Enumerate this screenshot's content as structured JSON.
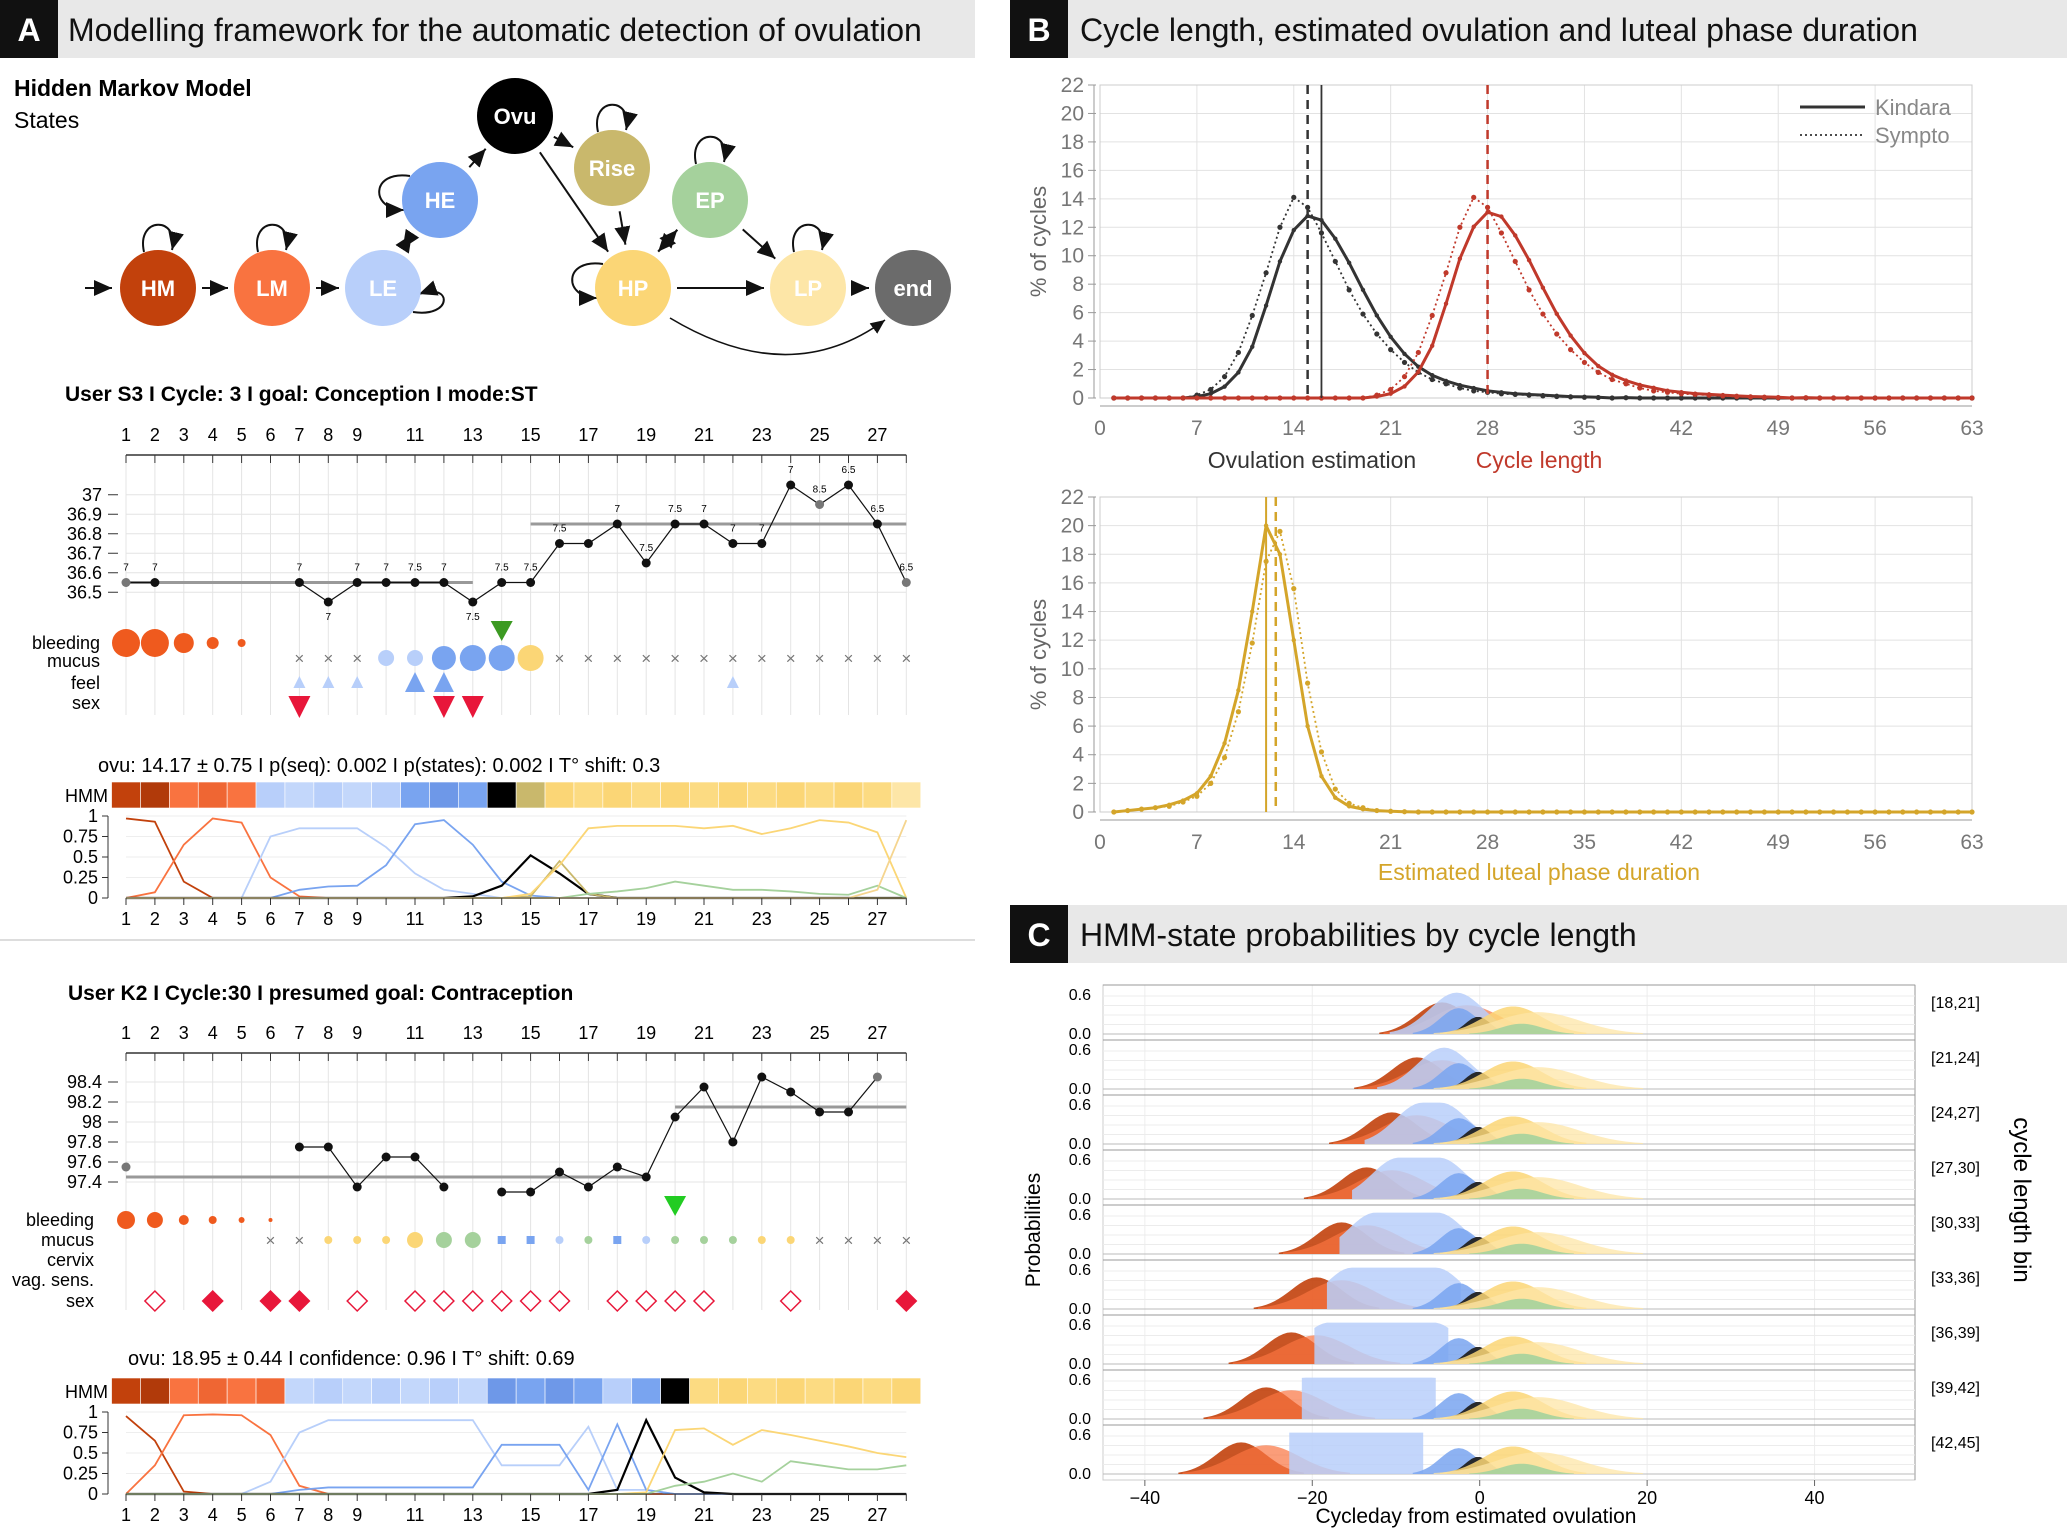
{
  "colors": {
    "HM": "#c2410c",
    "LM": "#f97340",
    "LE": "#b8cffa",
    "HE": "#79a4f0",
    "Ovu": "#000000",
    "Rise": "#c9b86c",
    "HP": "#fbd676",
    "EP": "#a5d19c",
    "LP": "#fde6a7",
    "end": "#6b6b6b",
    "kindara": "#333333",
    "cycle": "#c0392b",
    "luteal": "#d4a52a",
    "bleeding": "#ef5a1e",
    "sex": "#e8173a",
    "arrow_green": "#3c9a22"
  },
  "panelA": {
    "letter": "A",
    "title": "Modelling framework for the automatic detection of ovulation",
    "hmm_title": "Hidden Markov Model",
    "states_label": "States",
    "states": [
      {
        "id": "HM",
        "label": "HM"
      },
      {
        "id": "LM",
        "label": "LM"
      },
      {
        "id": "LE",
        "label": "LE"
      },
      {
        "id": "HE",
        "label": "HE"
      },
      {
        "id": "Ovu",
        "label": "Ovu"
      },
      {
        "id": "Rise",
        "label": "Rise"
      },
      {
        "id": "HP",
        "label": "HP"
      },
      {
        "id": "EP",
        "label": "EP"
      },
      {
        "id": "LP",
        "label": "LP"
      },
      {
        "id": "end",
        "label": "end"
      }
    ],
    "user1": {
      "header": "User S3  I Cycle: 3 I goal: Conception  I  mode:ST",
      "top_days": [
        "1",
        "2",
        "3",
        "4",
        "5",
        "6",
        "7",
        "8",
        "9",
        "11",
        "13",
        "15",
        "17",
        "19",
        "21",
        "23",
        "25",
        "27"
      ],
      "temp_ticks": [
        "37",
        "36.9",
        "36.8",
        "36.7",
        "36.6",
        "36.5"
      ],
      "temps": [
        36.55,
        36.55,
        null,
        null,
        null,
        null,
        36.55,
        36.45,
        36.55,
        36.55,
        36.55,
        36.55,
        36.45,
        36.55,
        36.55,
        36.75,
        36.75,
        36.85,
        36.65,
        36.85,
        36.85,
        36.75,
        36.75,
        37.05,
        36.95,
        37.05,
        36.85,
        36.55
      ],
      "temp_labels": [
        "7",
        "7",
        "",
        "",
        "",
        "",
        "7",
        "7",
        "7",
        "7",
        "7.5",
        "7",
        "7.5",
        "7.5",
        "7.5",
        "7.5",
        "",
        "7",
        "7.5",
        "7.5",
        "7",
        "7",
        "7",
        "7",
        "8.5",
        "6.5",
        "6.5",
        "6.5"
      ],
      "row_labels": [
        "bleeding",
        "mucus",
        "feel",
        "sex"
      ],
      "summary": "ovu:  14.17  ±  0.75  I p(seq):  0.002  I p(states):  0.002  I T° shift:  0.3",
      "hmm_label": "HMM",
      "states_seq": [
        "HM",
        "HM",
        "LM",
        "LM",
        "LM",
        "LE",
        "LE",
        "LE",
        "LE",
        "LE",
        "HE",
        "HE",
        "HE",
        "Ovu",
        "Rise",
        "HP",
        "HP",
        "HP",
        "HP",
        "HP",
        "HP",
        "HP",
        "HP",
        "HP",
        "HP",
        "HP",
        "HP",
        "LP"
      ],
      "prob_ticks": [
        "1",
        "0.75",
        "0.5",
        "0.25",
        "0"
      ],
      "bottom_days": [
        "1",
        "2",
        "3",
        "4",
        "5",
        "6",
        "7",
        "8",
        "9",
        "11",
        "13",
        "15",
        "17",
        "19",
        "21",
        "23",
        "25",
        "27"
      ]
    },
    "user2": {
      "header": "User K2 I Cycle:30 I presumed goal: Contraception",
      "top_days": [
        "1",
        "2",
        "3",
        "4",
        "5",
        "6",
        "7",
        "8",
        "9",
        "11",
        "13",
        "15",
        "17",
        "19",
        "21",
        "23",
        "25",
        "27"
      ],
      "temp_ticks": [
        "98.4",
        "98.2",
        "98",
        "97.8",
        "97.6",
        "97.4"
      ],
      "temps": [
        97.55,
        null,
        null,
        null,
        null,
        null,
        97.75,
        97.75,
        97.35,
        97.65,
        97.65,
        97.35,
        null,
        97.3,
        97.3,
        97.5,
        97.35,
        97.55,
        97.45,
        98.05,
        98.35,
        97.8,
        98.45,
        98.3,
        98.1,
        98.1,
        98.45
      ],
      "row_labels": [
        "bleeding",
        "mucus",
        "cervix",
        "vag. sens.",
        "sex"
      ],
      "summary": "ovu:  18.95  ±  0.44  I confidence: 0.96  I T° shift:  0.69",
      "hmm_label": "HMM",
      "states_seq": [
        "HM",
        "HM",
        "LM",
        "LM",
        "LM",
        "LM",
        "LE",
        "LE",
        "LE",
        "LE",
        "LE",
        "LE",
        "LE",
        "HE",
        "HE",
        "HE",
        "HE",
        "LE",
        "HE",
        "Ovu",
        "HP",
        "HP",
        "HP",
        "HP",
        "HP",
        "HP",
        "HP",
        "HP"
      ],
      "prob_ticks": [
        "1",
        "0.75",
        "0.5",
        "0.25",
        "0"
      ],
      "bottom_days": [
        "1",
        "2",
        "3",
        "4",
        "5",
        "6",
        "7",
        "8",
        "9",
        "11",
        "13",
        "15",
        "17",
        "19",
        "21",
        "23",
        "25",
        "27"
      ]
    }
  },
  "panelB": {
    "letter": "B",
    "title": "Cycle length, estimated ovulation and luteal phase duration",
    "legend": [
      "Kindara",
      "Sympto"
    ],
    "ylabel": "% of cycles",
    "yticks": [
      "22",
      "20",
      "18",
      "16",
      "14",
      "12",
      "10",
      "8",
      "6",
      "4",
      "2",
      "0"
    ],
    "xticks": [
      "0",
      "7",
      "14",
      "21",
      "28",
      "35",
      "42",
      "49",
      "56",
      "63"
    ],
    "xlabel_ovu": "Ovulation estimation",
    "xlabel_cycle": "Cycle length",
    "xlabel_luteal": "Estimated luteal phase duration"
  },
  "panelC": {
    "letter": "C",
    "title": "HMM-state probabilities by cycle length",
    "ylabel": "Probabilities",
    "right_label": "cycle length bin",
    "xlabel": "Cycleday from estimated ovulation",
    "xticks": [
      "−40",
      "−20",
      "0",
      "20",
      "40"
    ],
    "rows": [
      {
        "bin": "[18,21]",
        "t06": "0.6",
        "t00": "0.0"
      },
      {
        "bin": "[21,24]",
        "t06": "0.6",
        "t00": "0.0"
      },
      {
        "bin": "[24,27]",
        "t06": "0.6",
        "t00": "0.0"
      },
      {
        "bin": "[27,30]",
        "t06": "0.6",
        "t00": "0.0"
      },
      {
        "bin": "[30,33]",
        "t06": "0.6",
        "t00": "0.0"
      },
      {
        "bin": "[33,36]",
        "t06": "0.6",
        "t00": "0.0"
      },
      {
        "bin": "[36,39]",
        "t06": "0.6",
        "t00": "0.0"
      },
      {
        "bin": "[39,42]",
        "t06": "0.6",
        "t00": "0.0"
      },
      {
        "bin": "[42,45]",
        "t06": "0.6",
        "t00": "0.0"
      }
    ]
  },
  "chart_data": [
    {
      "type": "line",
      "title": "Cycle length, estimated ovulation and luteal phase duration",
      "ylabel": "% of cycles",
      "ylim": [
        0,
        22
      ],
      "xlim": [
        0,
        63
      ],
      "x": [
        6,
        7,
        8,
        9,
        10,
        11,
        12,
        13,
        14,
        15,
        16,
        17,
        18,
        19,
        20,
        21,
        22,
        23,
        24,
        25,
        26,
        27,
        28,
        29,
        30,
        31,
        32,
        33,
        34,
        35,
        36,
        38,
        40
      ],
      "series": [
        {
          "name": "Kindara",
          "values": [
            0,
            0.1,
            0.3,
            0.8,
            1.8,
            3.6,
            6.5,
            9.6,
            11.8,
            12.8,
            12.5,
            11.2,
            9.5,
            7.6,
            5.8,
            4.3,
            3.1,
            2.2,
            1.6,
            1.2,
            0.9,
            0.7,
            0.5,
            0.4,
            0.3,
            0.25,
            0.2,
            0.15,
            0.1,
            0.08,
            0.05,
            0.03,
            0
          ]
        },
        {
          "name": "Sympto",
          "values": [
            0,
            0.2,
            0.6,
            1.5,
            3.2,
            5.8,
            8.8,
            12.0,
            14.1,
            13.4,
            11.6,
            9.6,
            7.6,
            5.9,
            4.5,
            3.4,
            2.5,
            1.8,
            1.3,
            1.0,
            0.7,
            0.5,
            0.4,
            0.3,
            0.25,
            0.2,
            0.15,
            0.1,
            0.08,
            0.05,
            0.03,
            0.02,
            0
          ]
        }
      ],
      "vlines": [
        15,
        16,
        28
      ],
      "xlabel": "Ovulation estimation"
    },
    {
      "type": "line",
      "ylabel": "% of cycles",
      "ylim": [
        0,
        22
      ],
      "xlim": [
        0,
        63
      ],
      "x": [
        1,
        2,
        3,
        4,
        5,
        6,
        7,
        8,
        9,
        10,
        11,
        12,
        13,
        14,
        15,
        16,
        17,
        18,
        19,
        20,
        21,
        22,
        24,
        28,
        35,
        42,
        49,
        56,
        63
      ],
      "series": [
        {
          "name": "Kindara",
          "values": [
            0,
            0.1,
            0.2,
            0.3,
            0.5,
            0.8,
            1.3,
            2.5,
            4.8,
            8.5,
            14.0,
            20.0,
            18.0,
            12.0,
            6.0,
            2.5,
            1.0,
            0.4,
            0.2,
            0.1,
            0.05,
            0.02,
            0,
            0,
            0,
            0,
            0,
            0,
            0
          ]
        },
        {
          "name": "Sympto",
          "values": [
            0,
            0.1,
            0.2,
            0.3,
            0.4,
            0.7,
            1.1,
            2.0,
            3.8,
            7.0,
            11.8,
            17.5,
            19.6,
            15.6,
            9.0,
            4.2,
            1.6,
            0.6,
            0.3,
            0.1,
            0.05,
            0.02,
            0,
            0,
            0,
            0,
            0,
            0,
            0
          ]
        }
      ],
      "vlines": [
        12,
        13
      ],
      "xlabel": "Estimated luteal phase duration"
    }
  ]
}
